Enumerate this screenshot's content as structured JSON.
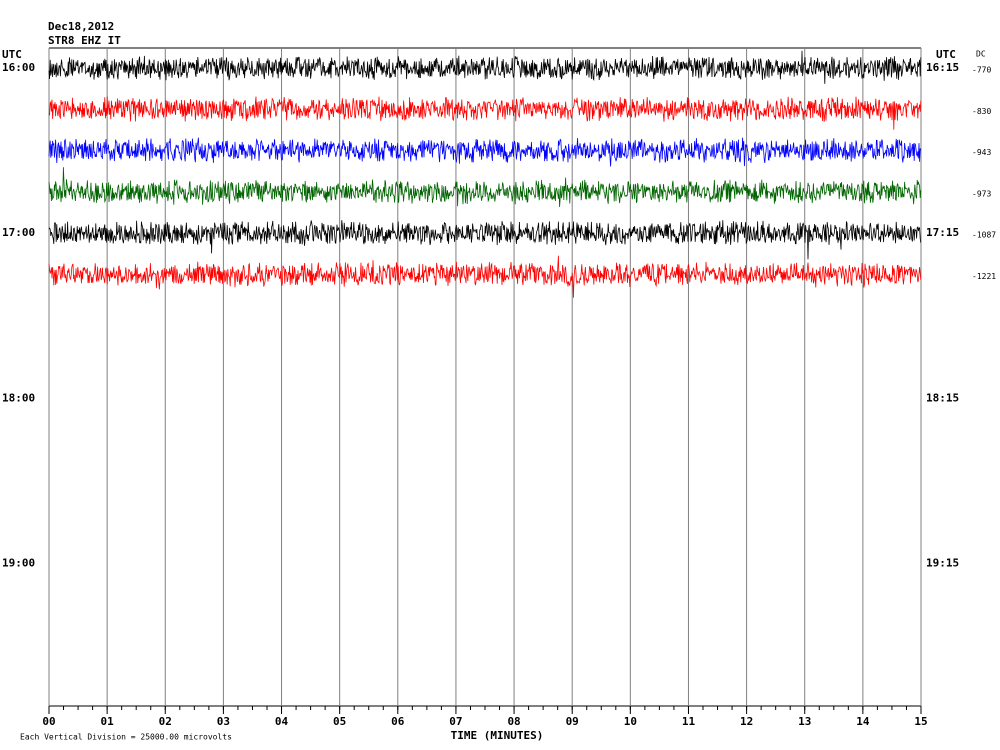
{
  "chart_data": {
    "type": "helicorder",
    "title": "Dec18,2012",
    "subtitle": "STR8 EHZ IT",
    "timezone_label": "UTC",
    "dc_label": "DC",
    "x_label": "TIME (MINUTES)",
    "note": "Each Vertical Division = 25000.00 microvolts",
    "xlim": [
      0,
      15
    ],
    "xticks": [
      {
        "value": 0,
        "label": "00"
      },
      {
        "value": 1,
        "label": "01"
      },
      {
        "value": 2,
        "label": "02"
      },
      {
        "value": 3,
        "label": "03"
      },
      {
        "value": 4,
        "label": "04"
      },
      {
        "value": 5,
        "label": "05"
      },
      {
        "value": 6,
        "label": "06"
      },
      {
        "value": 7,
        "label": "07"
      },
      {
        "value": 8,
        "label": "08"
      },
      {
        "value": 9,
        "label": "09"
      },
      {
        "value": 10,
        "label": "10"
      },
      {
        "value": 11,
        "label": "11"
      },
      {
        "value": 12,
        "label": "12"
      },
      {
        "value": 13,
        "label": "13"
      },
      {
        "value": 14,
        "label": "14"
      },
      {
        "value": 15,
        "label": "15"
      }
    ],
    "grid": true,
    "left_labels": [
      "16:00",
      "17:00",
      "18:00",
      "19:00"
    ],
    "right_labels": [
      "16:15",
      "17:15",
      "18:15",
      "19:15"
    ],
    "traces": [
      {
        "color": "#000000",
        "dc": -770
      },
      {
        "color": "#ff0000",
        "dc": -830
      },
      {
        "color": "#0000ff",
        "dc": -943
      },
      {
        "color": "#006400",
        "dc": -973
      },
      {
        "color": "#000000",
        "dc": -1087
      },
      {
        "color": "#ff0000",
        "dc": -1221
      }
    ]
  }
}
